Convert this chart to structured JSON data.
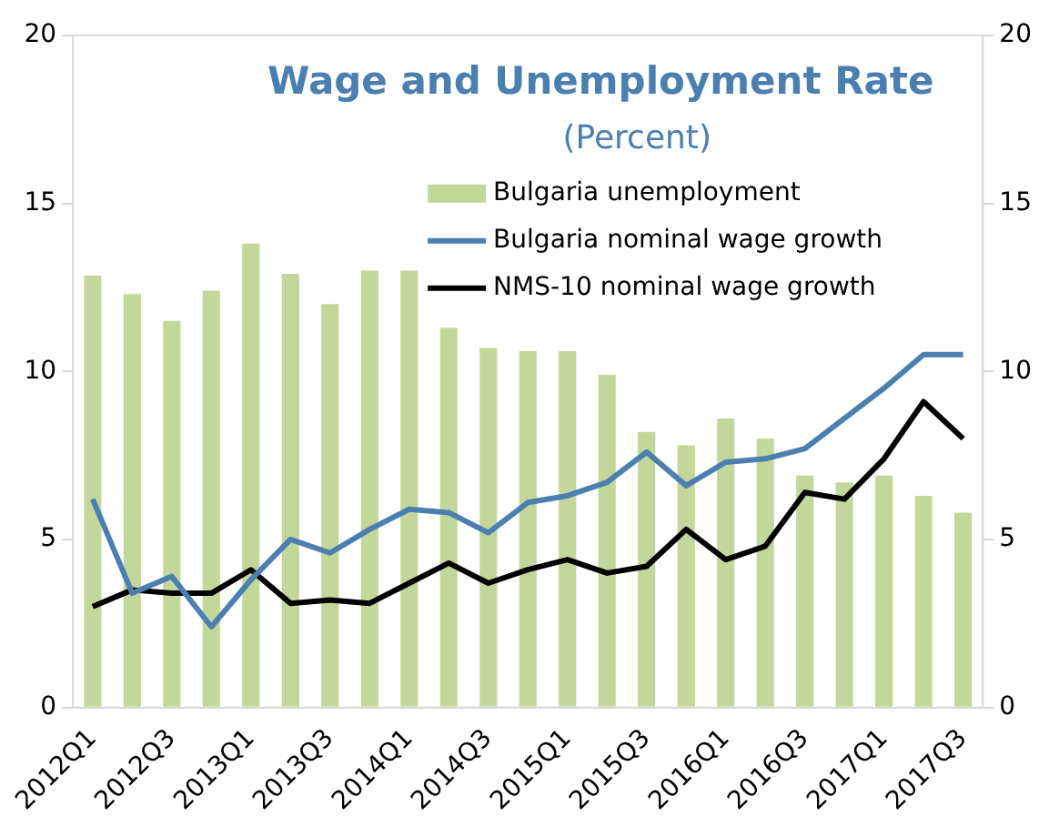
{
  "chart_data": {
    "type": "bar",
    "title": "Wage and Unemployment Rate",
    "subtitle": "(Percent)",
    "categories": [
      "2012Q1",
      null,
      "2012Q3",
      null,
      "2013Q1",
      null,
      "2013Q3",
      null,
      "2014Q1",
      null,
      "2014Q3",
      null,
      "2015Q1",
      null,
      "2015Q3",
      null,
      "2016Q1",
      null,
      "2016Q3",
      null,
      "2017Q1",
      null,
      "2017Q3"
    ],
    "series": [
      {
        "name": "Bulgaria unemployment",
        "color": "#c4d79b",
        "values": [
          12.85,
          12.3,
          11.5,
          12.4,
          13.8,
          12.9,
          12.0,
          13.0,
          13.0,
          11.3,
          10.7,
          10.6,
          10.6,
          9.9,
          8.2,
          7.8,
          8.6,
          8.0,
          6.9,
          6.7,
          6.9,
          6.3,
          5.8
        ]
      },
      {
        "name": "Bulgaria nominal wage growth",
        "type": "line",
        "color": "#4a7fb0",
        "values": [
          6.2,
          3.4,
          3.9,
          2.4,
          3.8,
          5.0,
          4.6,
          5.3,
          5.9,
          5.8,
          5.2,
          6.1,
          6.3,
          6.7,
          7.6,
          6.6,
          7.3,
          7.4,
          7.7,
          8.6,
          9.5,
          10.5,
          10.5
        ]
      },
      {
        "name": "NMS-10 nominal wage growth",
        "type": "line",
        "color": "#000000",
        "values": [
          3.0,
          3.5,
          3.4,
          3.4,
          4.1,
          3.1,
          3.2,
          3.1,
          3.7,
          4.3,
          3.7,
          4.1,
          4.4,
          4.0,
          4.2,
          5.3,
          4.4,
          4.8,
          6.4,
          6.2,
          7.4,
          9.1,
          8.0
        ]
      }
    ],
    "ylim": [
      0,
      20
    ],
    "yticks": [
      0,
      5,
      10,
      15,
      20
    ],
    "y2lim": [
      0,
      20
    ],
    "y2ticks": [
      0,
      5,
      10,
      15,
      20
    ],
    "grid": false,
    "legend": "top right",
    "marker": "none",
    "line_style": "solid"
  }
}
